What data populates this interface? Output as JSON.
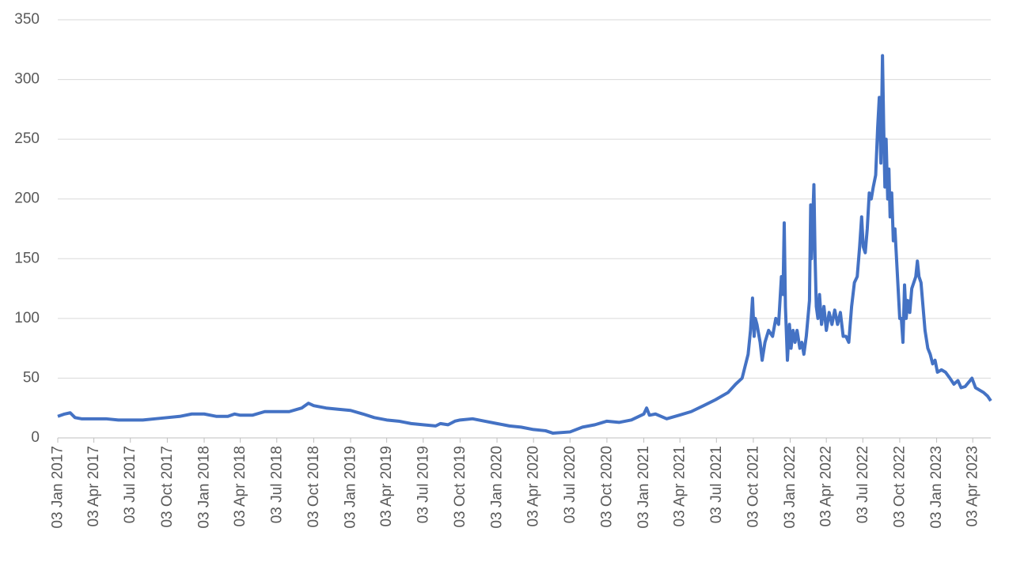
{
  "chart_data": {
    "type": "line",
    "color": "#4472c4",
    "grid": true,
    "ylim": [
      0,
      350
    ],
    "yticks": [
      0,
      50,
      100,
      150,
      200,
      250,
      300,
      350
    ],
    "xlim": [
      "03 Jan 2017",
      "18 May 2023"
    ],
    "xticks": [
      "03 Jan 2017",
      "03 Apr 2017",
      "03 Jul 2017",
      "03 Oct 2017",
      "03 Jan 2018",
      "03 Apr 2018",
      "03 Jul 2018",
      "03 Oct 2018",
      "03 Jan 2019",
      "03 Apr 2019",
      "03 Jul 2019",
      "03 Oct 2019",
      "03 Jan 2020",
      "03 Apr 2020",
      "03 Jul 2020",
      "03 Oct 2020",
      "03 Jan 2021",
      "03 Apr 2021",
      "03 Jul 2021",
      "03 Oct 2021",
      "03 Jan 2022",
      "03 Apr 2022",
      "03 Jul 2022",
      "03 Oct 2022",
      "03 Jan 2023",
      "03 Apr 2023"
    ],
    "x": [
      "03 Jan 2017",
      "20 Jan 2017",
      "03 Feb 2017",
      "15 Feb 2017",
      "03 Mar 2017",
      "03 Apr 2017",
      "03 May 2017",
      "03 Jun 2017",
      "03 Jul 2017",
      "03 Aug 2017",
      "03 Sep 2017",
      "03 Oct 2017",
      "03 Nov 2017",
      "03 Dec 2017",
      "03 Jan 2018",
      "03 Feb 2018",
      "03 Mar 2018",
      "20 Mar 2018",
      "03 Apr 2018",
      "03 May 2018",
      "03 Jun 2018",
      "03 Jul 2018",
      "03 Aug 2018",
      "03 Sep 2018",
      "20 Sep 2018",
      "03 Oct 2018",
      "03 Nov 2018",
      "03 Dec 2018",
      "03 Jan 2019",
      "03 Feb 2019",
      "03 Mar 2019",
      "03 Apr 2019",
      "03 May 2019",
      "03 Jun 2019",
      "03 Jul 2019",
      "03 Aug 2019",
      "15 Aug 2019",
      "03 Sep 2019",
      "20 Sep 2019",
      "03 Oct 2019",
      "03 Nov 2019",
      "03 Dec 2019",
      "03 Jan 2020",
      "03 Feb 2020",
      "03 Mar 2020",
      "03 Apr 2020",
      "03 May 2020",
      "21 May 2020",
      "03 Jul 2020",
      "03 Aug 2020",
      "03 Sep 2020",
      "03 Oct 2020",
      "03 Nov 2020",
      "03 Dec 2020",
      "03 Jan 2021",
      "10 Jan 2021",
      "17 Jan 2021",
      "01 Feb 2021",
      "01 Mar 2021",
      "01 Apr 2021",
      "01 May 2021",
      "01 Jun 2021",
      "01 Jul 2021",
      "01 Aug 2021",
      "20 Aug 2021",
      "05 Sep 2021",
      "20 Sep 2021",
      "26 Sep 2021",
      "01 Oct 2021",
      "05 Oct 2021",
      "08 Oct 2021",
      "12 Oct 2021",
      "20 Oct 2021",
      "25 Oct 2021",
      "01 Nov 2021",
      "10 Nov 2021",
      "20 Nov 2021",
      "28 Nov 2021",
      "05 Dec 2021",
      "12 Dec 2021",
      "16 Dec 2021",
      "19 Dec 2021",
      "22 Dec 2021",
      "27 Dec 2021",
      "01 Jan 2022",
      "05 Jan 2022",
      "10 Jan 2022",
      "15 Jan 2022",
      "20 Jan 2022",
      "27 Jan 2022",
      "01 Feb 2022",
      "06 Feb 2022",
      "12 Feb 2022",
      "20 Feb 2022",
      "23 Feb 2022",
      "25 Feb 2022",
      "03 Mar 2022",
      "06 Mar 2022",
      "09 Mar 2022",
      "13 Mar 2022",
      "17 Mar 2022",
      "22 Mar 2022",
      "28 Mar 2022",
      "03 Apr 2022",
      "10 Apr 2022",
      "17 Apr 2022",
      "24 Apr 2022",
      "01 May 2022",
      "08 May 2022",
      "15 May 2022",
      "22 May 2022",
      "29 May 2022",
      "05 Jun 2022",
      "12 Jun 2022",
      "19 Jun 2022",
      "25 Jun 2022",
      "30 Jun 2022",
      "04 Jul 2022",
      "09 Jul 2022",
      "14 Jul 2022",
      "19 Jul 2022",
      "24 Jul 2022",
      "29 Jul 2022",
      "04 Aug 2022",
      "09 Aug 2022",
      "13 Aug 2022",
      "17 Aug 2022",
      "21 Aug 2022",
      "24 Aug 2022",
      "27 Aug 2022",
      "30 Aug 2022",
      "03 Sep 2022",
      "06 Sep 2022",
      "09 Sep 2022",
      "13 Sep 2022",
      "17 Sep 2022",
      "21 Sep 2022",
      "25 Sep 2022",
      "29 Sep 2022",
      "03 Oct 2022",
      "07 Oct 2022",
      "11 Oct 2022",
      "15 Oct 2022",
      "19 Oct 2022",
      "23 Oct 2022",
      "28 Oct 2022",
      "02 Nov 2022",
      "07 Nov 2022",
      "12 Nov 2022",
      "16 Nov 2022",
      "20 Nov 2022",
      "25 Nov 2022",
      "30 Nov 2022",
      "05 Dec 2022",
      "12 Dec 2022",
      "18 Dec 2022",
      "24 Dec 2022",
      "30 Dec 2022",
      "05 Jan 2023",
      "15 Jan 2023",
      "25 Jan 2023",
      "05 Feb 2023",
      "15 Feb 2023",
      "25 Feb 2023",
      "05 Mar 2023",
      "15 Mar 2023",
      "25 Mar 2023",
      "01 Apr 2023",
      "10 Apr 2023",
      "20 Apr 2023",
      "30 Apr 2023",
      "10 May 2023",
      "18 May 2023"
    ],
    "values": [
      18,
      20,
      21,
      17,
      16,
      16,
      16,
      15,
      15,
      15,
      16,
      17,
      18,
      20,
      20,
      18,
      18,
      20,
      19,
      19,
      22,
      22,
      22,
      25,
      29,
      27,
      25,
      24,
      23,
      20,
      17,
      15,
      14,
      12,
      11,
      10,
      12,
      11,
      14,
      15,
      16,
      14,
      12,
      10,
      9,
      7,
      6,
      4,
      5,
      9,
      11,
      14,
      13,
      15,
      20,
      25,
      19,
      20,
      16,
      19,
      22,
      27,
      32,
      38,
      45,
      50,
      70,
      90,
      117,
      85,
      100,
      95,
      80,
      65,
      80,
      90,
      85,
      100,
      95,
      135,
      120,
      180,
      110,
      65,
      95,
      75,
      90,
      80,
      90,
      75,
      80,
      70,
      85,
      115,
      195,
      150,
      212,
      150,
      110,
      100,
      120,
      95,
      110,
      90,
      105,
      95,
      107,
      95,
      105,
      85,
      85,
      80,
      110,
      130,
      135,
      160,
      185,
      160,
      155,
      175,
      205,
      200,
      210,
      220,
      260,
      285,
      230,
      320,
      260,
      210,
      250,
      200,
      225,
      185,
      205,
      165,
      175,
      150,
      125,
      100,
      100,
      80,
      128,
      100,
      115,
      105,
      125,
      130,
      135,
      148,
      135,
      130,
      110,
      90,
      75,
      70,
      62,
      65,
      55,
      57,
      55,
      50,
      45,
      48,
      42,
      43,
      47,
      50,
      42,
      40,
      38,
      35,
      31
    ]
  }
}
